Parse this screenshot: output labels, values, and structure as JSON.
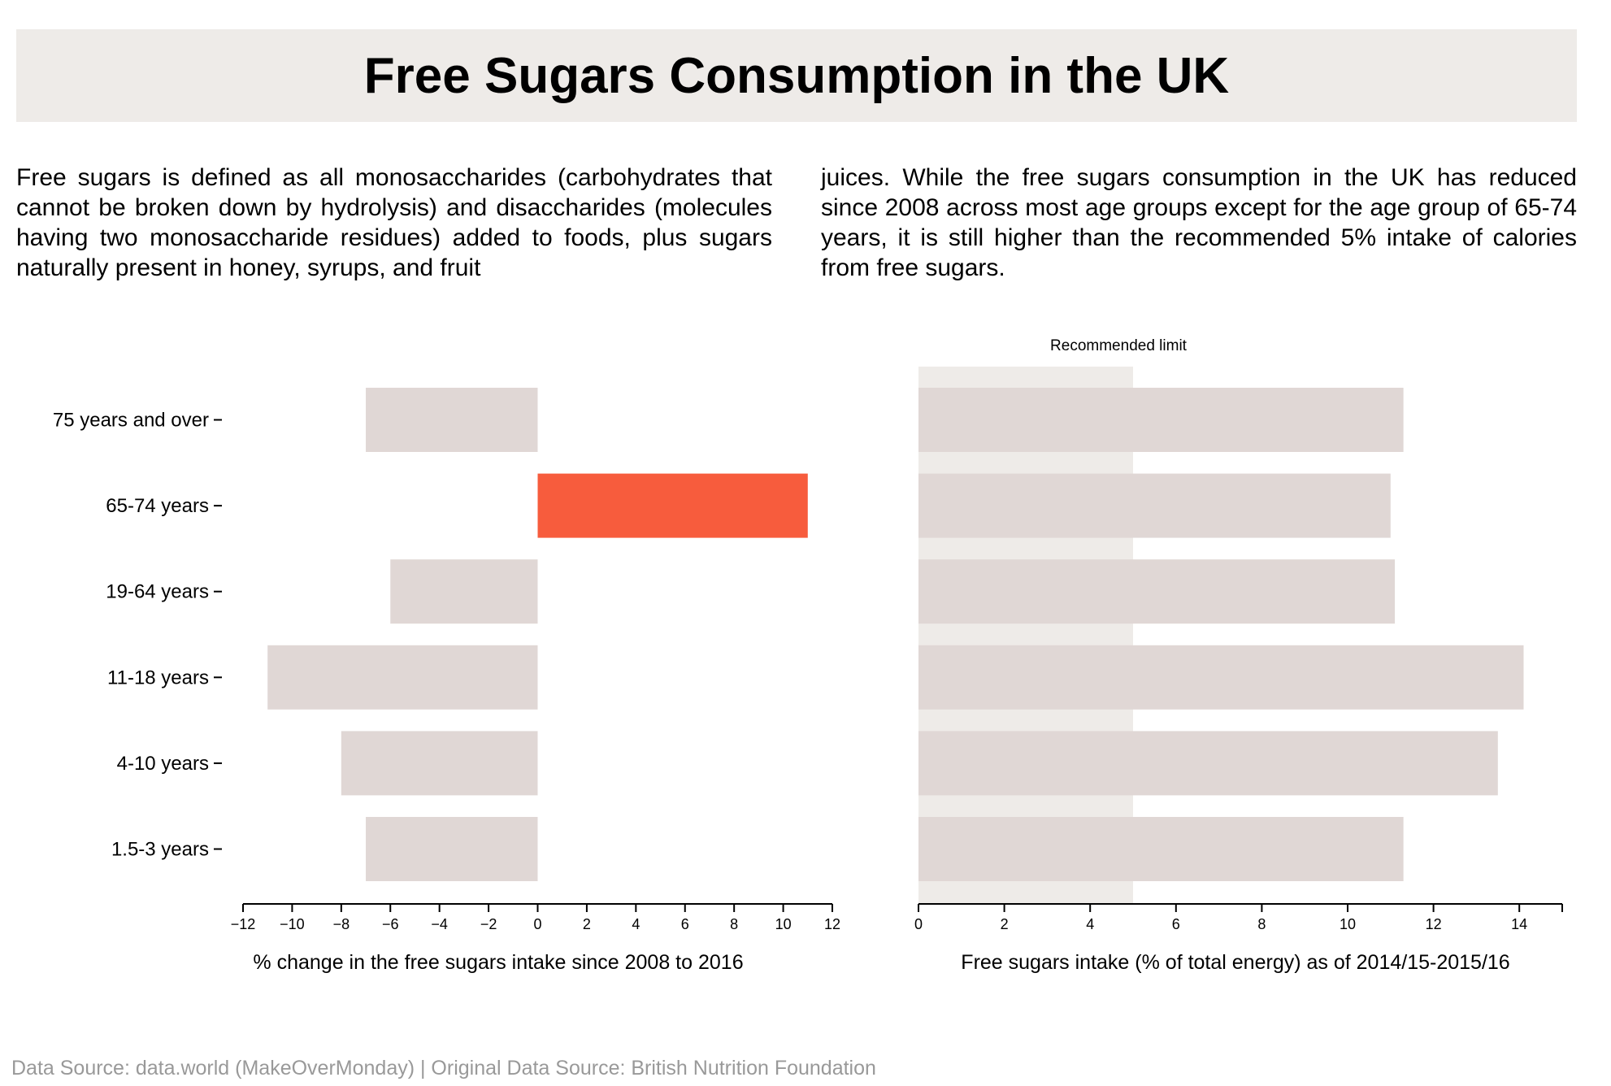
{
  "title": "Free Sugars Consumption in the UK",
  "description_left": "Free sugars is defined as all monosaccharides (carbohydrates that cannot be broken down by hydrolysis) and disaccharides (molecules having two monosaccharide residues) added to foods, plus sugars naturally present in honey, syrups, and fruit",
  "description_right": "juices. While the free sugars consumption in the UK has reduced since 2008 across most age groups except for the age group of 65-74 years, it is still higher than the recommended 5% intake of calories from free sugars.",
  "footer": "Data Source: data.world (MakeOverMonday) | Original Data Source: British Nutrition Foundation",
  "colors": {
    "bar": "#e0d7d5",
    "highlight": "#f75c3d",
    "limit_band": "#eeebe8"
  },
  "chart_data": [
    {
      "type": "bar",
      "orientation": "horizontal",
      "categories": [
        "75 years and over",
        "65-74 years",
        "19-64 years",
        "11-18 years",
        "4-10 years",
        "1.5-3 years"
      ],
      "values": [
        -7,
        11,
        -6,
        -11,
        -8,
        -7
      ],
      "highlight_category": "65-74 years",
      "xlabel": "% change in the free sugars intake since 2008 to 2016",
      "xlim": [
        -12,
        12
      ],
      "xticks": [
        -12,
        -10,
        -8,
        -6,
        -4,
        -2,
        0,
        2,
        4,
        6,
        8,
        10,
        12
      ],
      "grid": false
    },
    {
      "type": "bar",
      "orientation": "horizontal",
      "categories": [
        "75 years and over",
        "65-74 years",
        "19-64 years",
        "11-18 years",
        "4-10 years",
        "1.5-3 years"
      ],
      "values": [
        11.3,
        11.0,
        11.1,
        14.1,
        13.5,
        11.3
      ],
      "xlabel": "Free sugars intake (% of total energy) as of 2014/15-2015/16",
      "xlim": [
        0,
        15
      ],
      "xticks": [
        0,
        2,
        4,
        6,
        8,
        10,
        12,
        14
      ],
      "reference_band": {
        "label": "Recommended limit",
        "from": 0,
        "to": 5
      },
      "grid": false
    }
  ]
}
